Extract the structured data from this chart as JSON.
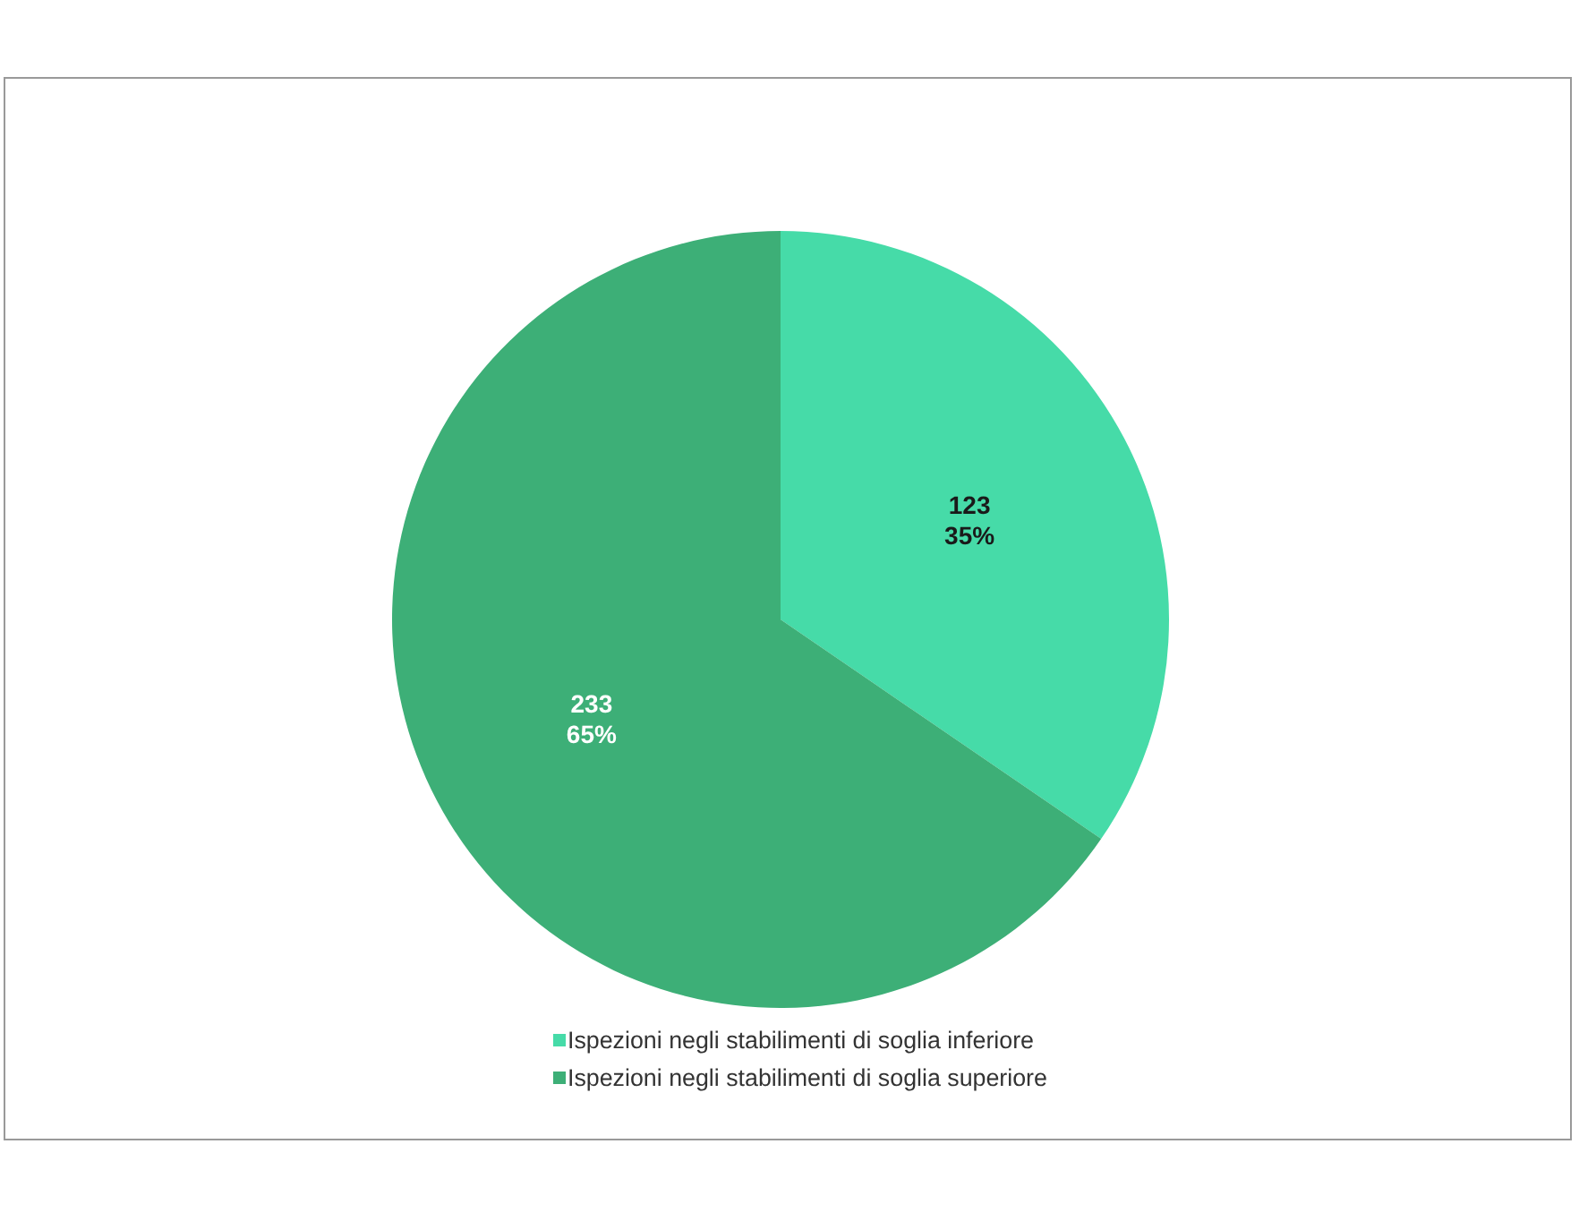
{
  "chart_data": {
    "type": "pie",
    "categories": [
      "Ispezioni negli stabilimenti di soglia inferiore",
      "Ispezioni negli stabilimenti di soglia superiore"
    ],
    "values": [
      123,
      233
    ],
    "colors": [
      "#46dba8",
      "#3daf77"
    ],
    "value_labels": [
      "123\n35%",
      "233\n65%"
    ],
    "legend": "bottom"
  }
}
